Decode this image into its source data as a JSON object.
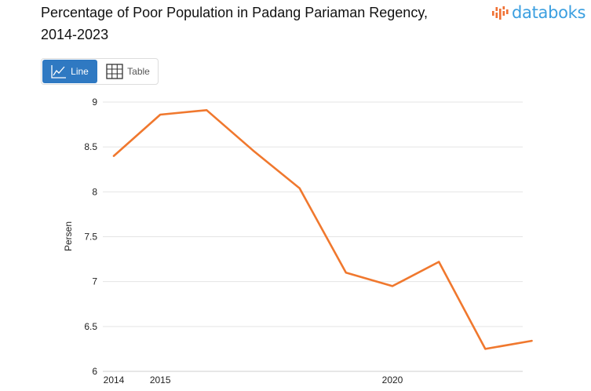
{
  "header": {
    "title_line1": "Percentage of Poor Population in Padang Pariaman Regency,",
    "title_line2": "2014-2023",
    "brand": "databoks",
    "brand_color": "#3b9fe0",
    "brand_icon_color": "#f07033",
    "brand_icon": "databoks-logo-icon"
  },
  "toggle": {
    "line_label": "Line",
    "table_label": "Table",
    "active": "Line",
    "active_color": "#2f79c2",
    "line_icon": "line-chart-icon",
    "table_icon": "table-grid-icon"
  },
  "chart_data": {
    "type": "line",
    "title": "Percentage of Poor Population in Padang Pariaman Regency, 2014-2023",
    "xlabel": "",
    "ylabel": "Persen",
    "x": [
      2014,
      2015,
      2016,
      2017,
      2018,
      2019,
      2020,
      2021,
      2022,
      2023
    ],
    "series": [
      {
        "values": [
          8.4,
          8.86,
          8.91,
          8.46,
          8.04,
          7.1,
          6.95,
          7.22,
          6.25,
          6.34
        ],
        "color": "#f0782e"
      }
    ],
    "x_tick_labels": [
      "2014",
      "2015",
      "2020"
    ],
    "y_ticks": [
      6,
      6.5,
      7,
      7.5,
      8,
      8.5,
      9
    ],
    "y_tick_labels": [
      "6",
      "6.5",
      "7",
      "7.5",
      "8",
      "8.5",
      "9"
    ],
    "ylim": [
      6,
      9
    ],
    "grid": "horizontal",
    "legend": "none"
  }
}
